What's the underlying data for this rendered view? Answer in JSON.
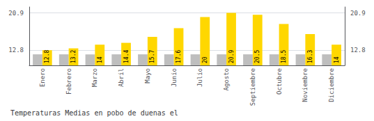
{
  "chart_data": {
    "type": "bar",
    "title": "Temperaturas Medias en pobo de duenas el",
    "categories": [
      "Enero",
      "Febrero",
      "Marzo",
      "Abril",
      "Mayo",
      "Junio",
      "Julio",
      "Agosto",
      "Septiembre",
      "Octubre",
      "Noviembre",
      "Diciembre"
    ],
    "series": [
      {
        "color": "#BEBEBE",
        "values": [
          11.9,
          11.9,
          11.9,
          11.9,
          11.9,
          11.9,
          11.9,
          11.9,
          11.9,
          11.9,
          11.9,
          11.9
        ]
      },
      {
        "color": "#FFD700",
        "data_labels": true,
        "values": [
          12.8,
          13.2,
          14.0,
          14.4,
          15.7,
          17.6,
          20.0,
          20.9,
          20.5,
          18.5,
          16.3,
          14.0
        ]
      }
    ],
    "ylim": [
      9.5,
      22.2
    ],
    "yticks": [
      12.8,
      20.9
    ],
    "y2lim": [
      9.5,
      22.2
    ],
    "y2ticks": [
      12.8,
      20.9
    ],
    "grid": true
  }
}
